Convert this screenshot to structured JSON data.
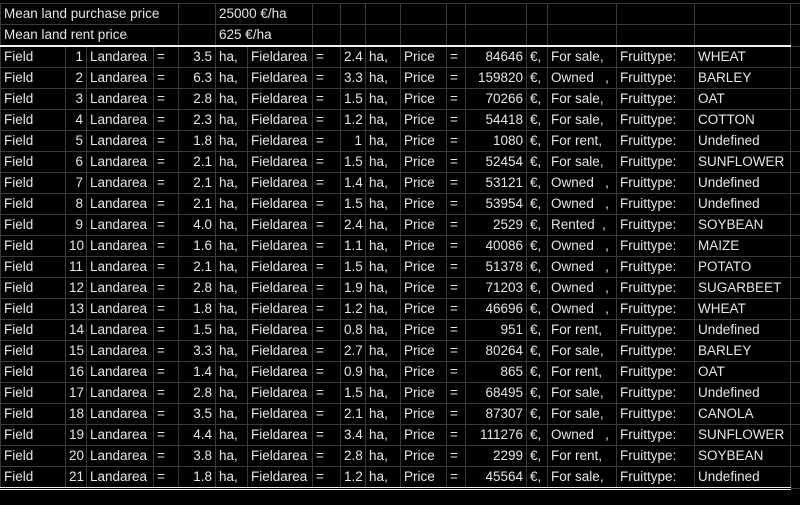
{
  "header": {
    "purchase_label": "Mean land purchase price",
    "purchase_value": "25000 €/ha",
    "rent_label": "Mean land rent price",
    "rent_value": "625 €/ha"
  },
  "labels": {
    "field": "Field",
    "landarea": "Landarea",
    "eq": "=",
    "ha": "ha,",
    "fieldarea": "Fieldarea",
    "price": "Price",
    "euro": "€,",
    "fruittype": "Fruittype:"
  },
  "fields": [
    {
      "id": "1",
      "landarea": "3.5",
      "fieldarea": "2.4",
      "price": "84646",
      "status": "For sale,",
      "fruit": "WHEAT"
    },
    {
      "id": "2",
      "landarea": "6.3",
      "fieldarea": "3.3",
      "price": "159820",
      "status": "Owned   ,",
      "fruit": "BARLEY"
    },
    {
      "id": "3",
      "landarea": "2.8",
      "fieldarea": "1.5",
      "price": "70266",
      "status": "For sale,",
      "fruit": "OAT"
    },
    {
      "id": "4",
      "landarea": "2.3",
      "fieldarea": "1.2",
      "price": "54418",
      "status": "For sale,",
      "fruit": "COTTON"
    },
    {
      "id": "5",
      "landarea": "1.8",
      "fieldarea": "1",
      "price": "1080",
      "status": "For rent,",
      "fruit": "Undefined"
    },
    {
      "id": "6",
      "landarea": "2.1",
      "fieldarea": "1.5",
      "price": "52454",
      "status": "For sale,",
      "fruit": "SUNFLOWER"
    },
    {
      "id": "7",
      "landarea": "2.1",
      "fieldarea": "1.4",
      "price": "53121",
      "status": "Owned   ,",
      "fruit": "Undefined"
    },
    {
      "id": "8",
      "landarea": "2.1",
      "fieldarea": "1.5",
      "price": "53954",
      "status": "Owned   ,",
      "fruit": "Undefined"
    },
    {
      "id": "9",
      "landarea": "4.0",
      "fieldarea": "2.4",
      "price": "2529",
      "status": "Rented  ,",
      "fruit": "SOYBEAN"
    },
    {
      "id": "10",
      "landarea": "1.6",
      "fieldarea": "1.1",
      "price": "40086",
      "status": "Owned   ,",
      "fruit": "MAIZE"
    },
    {
      "id": "11",
      "landarea": "2.1",
      "fieldarea": "1.5",
      "price": "51378",
      "status": "Owned   ,",
      "fruit": "POTATO"
    },
    {
      "id": "12",
      "landarea": "2.8",
      "fieldarea": "1.9",
      "price": "71203",
      "status": "Owned   ,",
      "fruit": "SUGARBEET"
    },
    {
      "id": "13",
      "landarea": "1.8",
      "fieldarea": "1.2",
      "price": "46696",
      "status": "Owned   ,",
      "fruit": "WHEAT"
    },
    {
      "id": "14",
      "landarea": "1.5",
      "fieldarea": "0.8",
      "price": "951",
      "status": "For rent,",
      "fruit": "Undefined"
    },
    {
      "id": "15",
      "landarea": "3.3",
      "fieldarea": "2.7",
      "price": "80264",
      "status": "For sale,",
      "fruit": "BARLEY"
    },
    {
      "id": "16",
      "landarea": "1.4",
      "fieldarea": "0.9",
      "price": "865",
      "status": "For rent,",
      "fruit": "OAT"
    },
    {
      "id": "17",
      "landarea": "2.8",
      "fieldarea": "1.5",
      "price": "68495",
      "status": "For sale,",
      "fruit": "Undefined"
    },
    {
      "id": "18",
      "landarea": "3.5",
      "fieldarea": "2.1",
      "price": "87307",
      "status": "For sale,",
      "fruit": "CANOLA"
    },
    {
      "id": "19",
      "landarea": "4.4",
      "fieldarea": "3.4",
      "price": "111276",
      "status": "Owned   ,",
      "fruit": "SUNFLOWER"
    },
    {
      "id": "20",
      "landarea": "3.8",
      "fieldarea": "2.8",
      "price": "2299",
      "status": "For rent,",
      "fruit": "SOYBEAN"
    },
    {
      "id": "21",
      "landarea": "1.8",
      "fieldarea": "1.2",
      "price": "45564",
      "status": "For sale,",
      "fruit": "Undefined"
    }
  ]
}
